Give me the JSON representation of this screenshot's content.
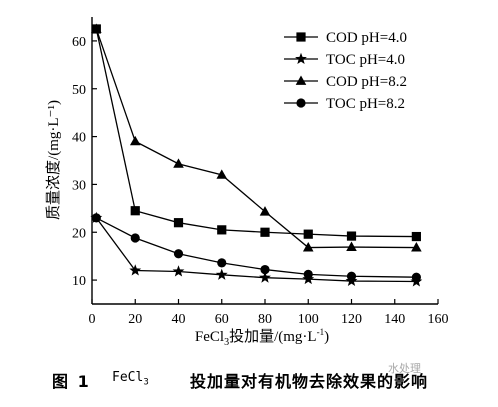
{
  "chart_data": {
    "type": "line",
    "xlabel": "FeCl",
    "xlabel_sub": "3",
    "xlabel_rest": "投加量/(mg·L",
    "xlabel_sup": "-1",
    "xlabel_close": ")",
    "ylabel": "质量浓度/(mg·L⁻¹)",
    "xlim": [
      0,
      160
    ],
    "ylim": [
      5,
      65
    ],
    "xticks": [
      0,
      20,
      40,
      60,
      80,
      100,
      120,
      140,
      160
    ],
    "yticks": [
      10,
      20,
      30,
      40,
      50,
      60
    ],
    "grid": false,
    "legend_position": "top-right",
    "series": [
      {
        "name": "COD pH=4.0",
        "marker": "square",
        "x": [
          2,
          20,
          40,
          60,
          80,
          100,
          120,
          150
        ],
        "y": [
          62.5,
          24.5,
          22,
          20.5,
          20,
          19.6,
          19.2,
          19.1
        ]
      },
      {
        "name": "TOC pH=4.0",
        "marker": "star",
        "x": [
          2,
          20,
          40,
          60,
          80,
          100,
          120,
          150
        ],
        "y": [
          23,
          12,
          11.8,
          11.1,
          10.5,
          10.2,
          9.8,
          9.7
        ]
      },
      {
        "name": "COD pH=8.2",
        "marker": "triangle",
        "x": [
          2,
          20,
          40,
          60,
          80,
          100,
          120,
          150
        ],
        "y": [
          62.5,
          39,
          34.3,
          32,
          24.3,
          16.8,
          16.9,
          16.8
        ]
      },
      {
        "name": "TOC pH=8.2",
        "marker": "circle",
        "x": [
          2,
          20,
          40,
          60,
          80,
          100,
          120,
          150
        ],
        "y": [
          23,
          18.8,
          15.5,
          13.6,
          12.2,
          11.2,
          10.8,
          10.6
        ]
      }
    ]
  },
  "caption": {
    "label": "图 1",
    "formula": "FeCl",
    "formula_sub": "3",
    "text": "投加量对有机物去除效果的影响"
  },
  "watermark": "水处理"
}
